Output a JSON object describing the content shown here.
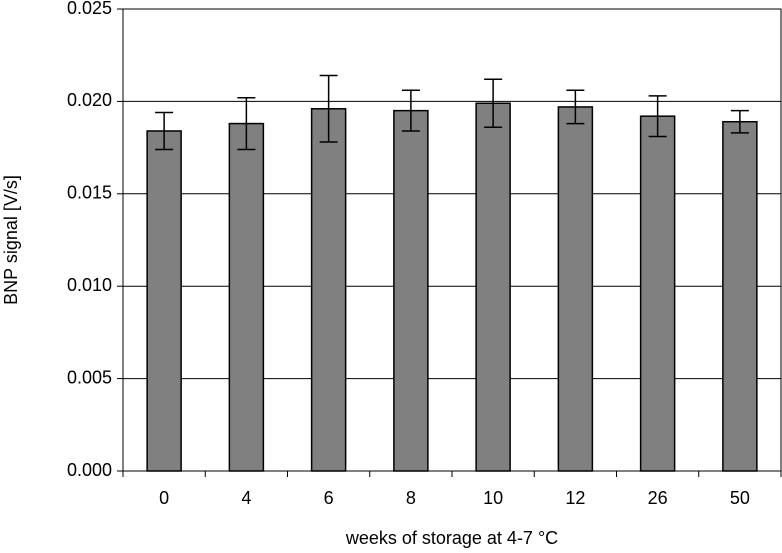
{
  "chart_data": {
    "type": "bar",
    "xlabel": "weeks of storage at 4-7 °C",
    "ylabel": "BNP signal [V/s]",
    "categories": [
      "0",
      "4",
      "6",
      "8",
      "10",
      "12",
      "26",
      "50"
    ],
    "values": [
      0.0184,
      0.0188,
      0.0196,
      0.0195,
      0.0199,
      0.0197,
      0.0192,
      0.0189
    ],
    "errors": [
      0.001,
      0.0014,
      0.0018,
      0.0011,
      0.0013,
      0.0009,
      0.0011,
      0.0006
    ],
    "color": "#808080",
    "ylim": [
      0,
      0.025
    ],
    "yticks": [
      {
        "value": 0,
        "label": "0.000"
      },
      {
        "value": 0.005,
        "label": "0.005"
      },
      {
        "value": 0.01,
        "label": "0.010"
      },
      {
        "value": 0.015,
        "label": "0.015"
      },
      {
        "value": 0.02,
        "label": "0.020"
      },
      {
        "value": 0.025,
        "label": "0.025"
      }
    ],
    "grid": true
  }
}
